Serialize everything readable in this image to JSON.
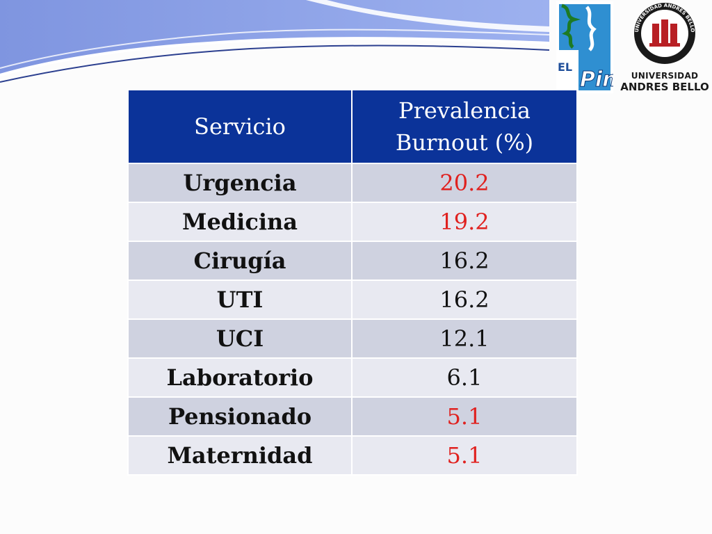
{
  "logos": {
    "left": {
      "line1": "EL",
      "line2": "Pino"
    },
    "right": {
      "seal_text": "UNIVERSIDAD ANDRES BELLO",
      "seal_motto": "TRADICION Y MODERNIDAD",
      "line1": "UNIVERSIDAD",
      "line2": "ANDRES BELLO"
    }
  },
  "table": {
    "headers": [
      "Servicio",
      "Prevalencia Burnout (%)"
    ],
    "rows": [
      {
        "servicio": "Urgencia",
        "prevalencia": "20.2",
        "highlight": true
      },
      {
        "servicio": "Medicina",
        "prevalencia": "19.2",
        "highlight": true
      },
      {
        "servicio": "Cirugía",
        "prevalencia": "16.2",
        "highlight": false
      },
      {
        "servicio": "UTI",
        "prevalencia": "16.2",
        "highlight": false
      },
      {
        "servicio": "UCI",
        "prevalencia": "12.1",
        "highlight": false
      },
      {
        "servicio": "Laboratorio",
        "prevalencia": "6.1",
        "highlight": false
      },
      {
        "servicio": "Pensionado",
        "prevalencia": "5.1",
        "highlight": true
      },
      {
        "servicio": "Maternidad",
        "prevalencia": "5.1",
        "highlight": true
      }
    ]
  },
  "colors": {
    "header_bg": "#0b3399",
    "row_odd": "#cfd2e0",
    "row_even": "#e8e9f1",
    "highlight_text": "#e0211f"
  }
}
